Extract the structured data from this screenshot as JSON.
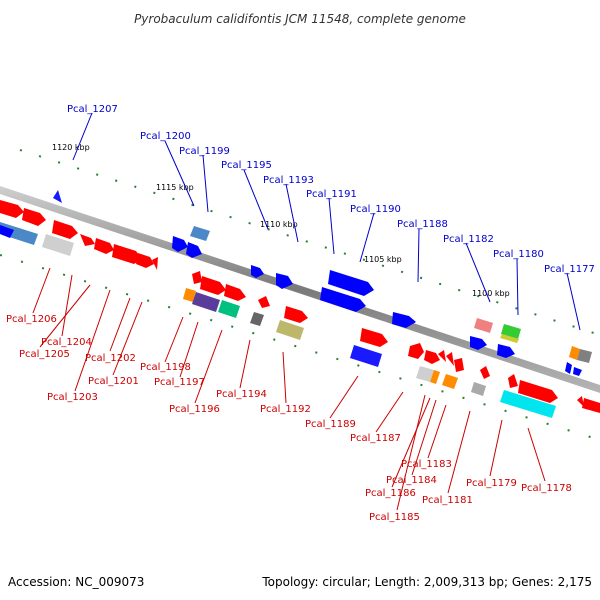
{
  "title": "Pyrobaculum calidifontis JCM 11548, complete genome",
  "footer": {
    "accession": "Accession: NC_009073",
    "summary": "Topology: circular; Length: 2,009,313 bp; Genes: 2,175"
  },
  "scale_labels": [
    "1120 kbp",
    "1115 kbp",
    "1110 kbp",
    "1105 kbp",
    "1100 kbp"
  ],
  "top_labels": [
    "Pcal_1207",
    "Pcal_1200",
    "Pcal_1199",
    "Pcal_1195",
    "Pcal_1193",
    "Pcal_1191",
    "Pcal_1190",
    "Pcal_1188",
    "Pcal_1182",
    "Pcal_1180",
    "Pcal_1177"
  ],
  "bottom_labels": [
    "Pcal_1206",
    "Pcal_1204",
    "Pcal_1205",
    "Pcal_1202",
    "Pcal_1201",
    "Pcal_1203",
    "Pcal_1198",
    "Pcal_1197",
    "Pcal_1196",
    "Pcal_1194",
    "Pcal_1192",
    "Pcal_1189",
    "Pcal_1187",
    "Pcal_1183",
    "Pcal_1184",
    "Pcal_1186",
    "Pcal_1185",
    "Pcal_1181",
    "Pcal_1179",
    "Pcal_1178"
  ],
  "colors": {
    "top_label": "#0000cc",
    "bottom_label": "#cc0000",
    "backbone": "#808080",
    "gene_forward": "#ff0000",
    "gene_reverse": "#0000ff",
    "tick": "#2e7d32"
  }
}
